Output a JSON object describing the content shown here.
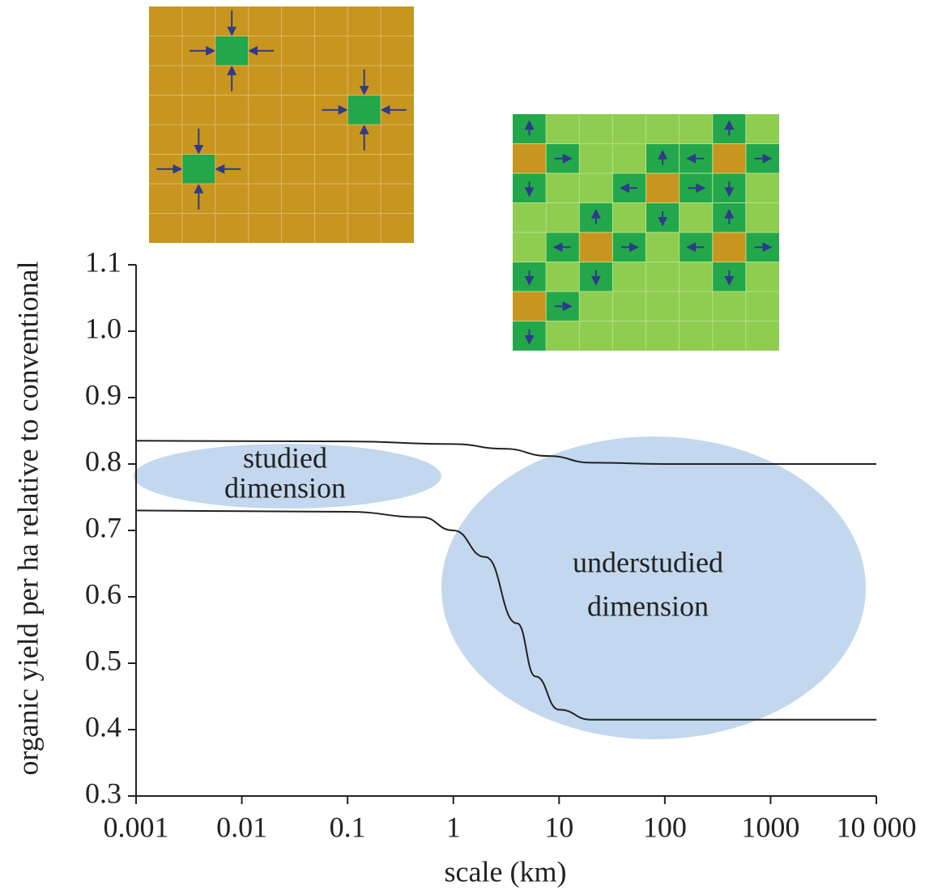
{
  "chart_data": {
    "type": "line",
    "x_label": "scale (km)",
    "y_label": "organic yield per ha relative to conventional",
    "xscale": "log",
    "xlim": [
      0.001,
      10000
    ],
    "xticks": [
      0.001,
      0.01,
      0.1,
      1,
      10,
      100,
      1000,
      {
        "value": 10000,
        "label": "10 000"
      }
    ],
    "ylim": [
      0.3,
      1.1
    ],
    "yticks": [
      0.3,
      0.4,
      0.5,
      0.6,
      0.7,
      0.8,
      0.9,
      {
        "value": 1,
        "label": "1.0"
      },
      1.1
    ],
    "series": [
      {
        "color": "#222222",
        "x": [
          0.001,
          0.1,
          1,
          3,
          8,
          20,
          100,
          10000
        ],
        "values": [
          0.835,
          0.834,
          0.83,
          0.823,
          0.812,
          0.802,
          0.8,
          0.8
        ]
      },
      {
        "color": "#222222",
        "x": [
          0.001,
          0.1,
          0.5,
          1,
          2,
          4,
          6,
          10,
          20,
          10000
        ],
        "values": [
          0.73,
          0.728,
          0.72,
          0.7,
          0.66,
          0.56,
          0.48,
          0.43,
          0.415,
          0.415
        ]
      }
    ],
    "annotations": [
      [
        "studied",
        "dimension"
      ],
      [
        "understudied",
        "dimension"
      ]
    ]
  }
}
